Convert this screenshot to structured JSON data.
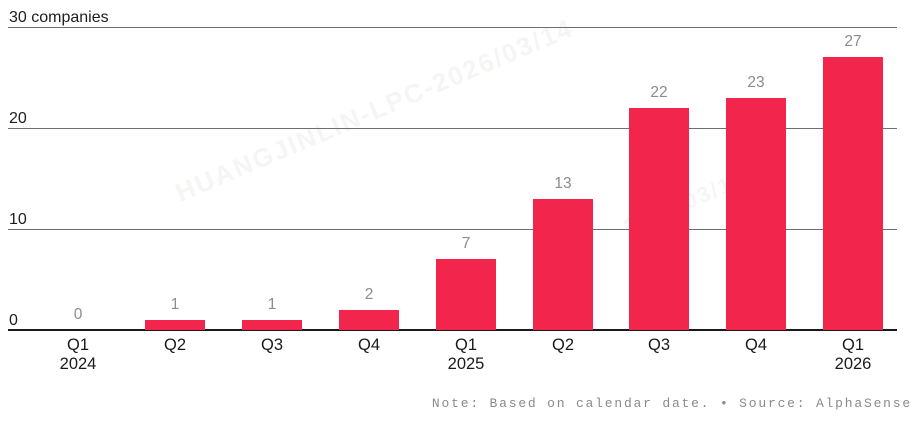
{
  "chart_data": {
    "type": "bar",
    "title": "30 companies",
    "categories": [
      {
        "label": "Q1",
        "year": "2024"
      },
      {
        "label": "Q2",
        "year": ""
      },
      {
        "label": "Q3",
        "year": ""
      },
      {
        "label": "Q4",
        "year": ""
      },
      {
        "label": "Q1",
        "year": "2025"
      },
      {
        "label": "Q2",
        "year": ""
      },
      {
        "label": "Q3",
        "year": ""
      },
      {
        "label": "Q4",
        "year": ""
      },
      {
        "label": "Q1",
        "year": "2026"
      }
    ],
    "values": [
      0,
      1,
      1,
      2,
      7,
      13,
      22,
      23,
      27
    ],
    "yticks": [
      {
        "value": 30,
        "label": "30 companies"
      },
      {
        "value": 20,
        "label": "20"
      },
      {
        "value": 10,
        "label": "10"
      },
      {
        "value": 0,
        "label": "0"
      }
    ],
    "ylim": [
      0,
      30
    ],
    "ylabel": "companies",
    "grid": true,
    "legend": "none",
    "bar_color": "#f2254c",
    "value_label_color": "#8c8c8c",
    "note": "Note: Based on calendar date. • Source: AlphaSense"
  },
  "watermark": {
    "line1": "HUANGJINLIN-LPC-2026/03/14",
    "line2": "2026/03/14"
  }
}
